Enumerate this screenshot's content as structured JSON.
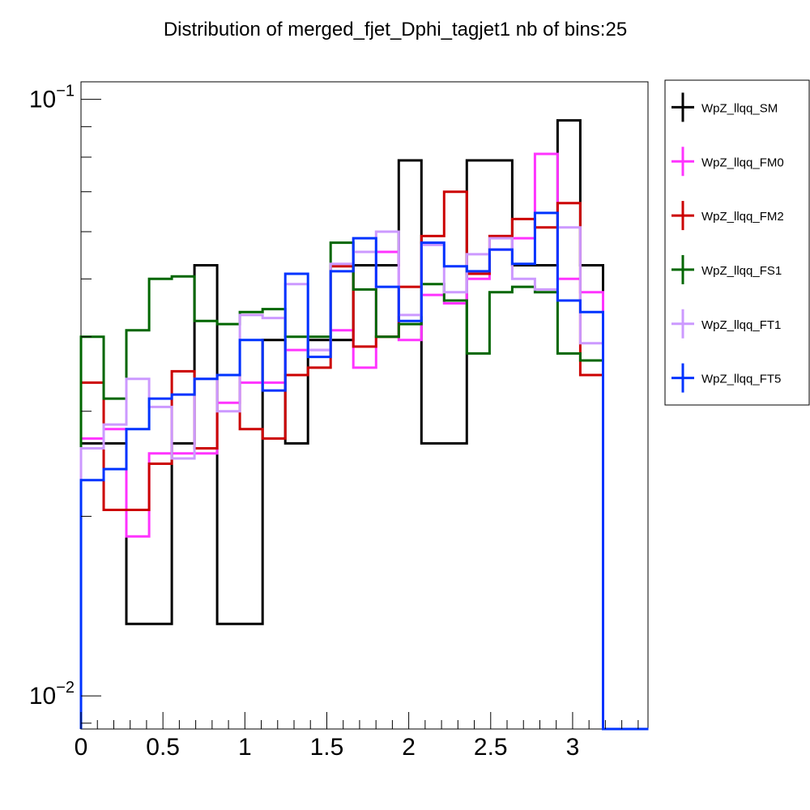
{
  "chart_data": {
    "type": "line",
    "title": "Distribution of merged_fjet_Dphi_tagjet1 nb of bins:25",
    "xlabel": "",
    "ylabel": "",
    "x_scale": "linear",
    "y_scale": "log",
    "xlim": [
      0,
      3.46
    ],
    "ylim": [
      0.0088,
      0.107
    ],
    "bin_edges": [
      0.0,
      0.1385,
      0.277,
      0.4155,
      0.554,
      0.6925,
      0.831,
      0.9695,
      1.108,
      1.2465,
      1.385,
      1.5235,
      1.662,
      1.8005,
      1.939,
      2.0775,
      2.216,
      2.3545,
      2.493,
      2.6315,
      2.77,
      2.9085,
      3.047,
      3.1855,
      3.324,
      3.4625
    ],
    "x_ticks": [
      {
        "value": 0,
        "label": "0"
      },
      {
        "value": 0.5,
        "label": "0.5"
      },
      {
        "value": 1,
        "label": "1"
      },
      {
        "value": 1.5,
        "label": "1.5"
      },
      {
        "value": 2,
        "label": "2"
      },
      {
        "value": 2.5,
        "label": "2.5"
      },
      {
        "value": 3,
        "label": "3"
      }
    ],
    "y_ticks": [
      {
        "value": 0.1,
        "base": "10",
        "exp": "−1"
      },
      {
        "value": 0.01,
        "base": "10",
        "exp": "−2"
      }
    ],
    "grid": false,
    "legend_position": "right",
    "series": [
      {
        "name": "WpZ_llqq_SM",
        "color": "#000000",
        "values": [
          0.0265,
          0.0265,
          0.0132,
          0.0132,
          0.0265,
          0.0527,
          0.0132,
          0.0132,
          0.0395,
          0.0265,
          0.0395,
          0.0395,
          0.0527,
          0.0527,
          0.079,
          0.0265,
          0.0265,
          0.079,
          0.079,
          0.0527,
          0.0527,
          0.0922,
          0.0527,
          0.0,
          0.0
        ]
      },
      {
        "name": "WpZ_llqq_FM0",
        "color": "#ff33ff",
        "values": [
          0.027,
          0.028,
          0.0185,
          0.0255,
          0.0255,
          0.0255,
          0.031,
          0.0335,
          0.0335,
          0.038,
          0.038,
          0.041,
          0.0355,
          0.0555,
          0.0395,
          0.047,
          0.0455,
          0.05,
          0.056,
          0.0585,
          0.081,
          0.05,
          0.0475,
          0.0,
          0.0
        ]
      },
      {
        "name": "WpZ_llqq_FM2",
        "color": "#cc0000",
        "values": [
          0.0335,
          0.0205,
          0.0205,
          0.0245,
          0.035,
          0.026,
          0.0345,
          0.028,
          0.027,
          0.0345,
          0.0355,
          0.0525,
          0.0385,
          0.04,
          0.0485,
          0.059,
          0.07,
          0.051,
          0.059,
          0.063,
          0.061,
          0.067,
          0.0345,
          0.0,
          0.0
        ]
      },
      {
        "name": "WpZ_llqq_FS1",
        "color": "#006600",
        "values": [
          0.04,
          0.0315,
          0.041,
          0.05,
          0.0505,
          0.0425,
          0.042,
          0.044,
          0.0445,
          0.04,
          0.04,
          0.0575,
          0.048,
          0.04,
          0.042,
          0.049,
          0.046,
          0.0375,
          0.0475,
          0.0485,
          0.0475,
          0.0375,
          0.0365,
          0.0,
          0.0
        ]
      },
      {
        "name": "WpZ_llqq_FT1",
        "color": "#cc99ff",
        "values": [
          0.026,
          0.0285,
          0.034,
          0.0305,
          0.025,
          0.034,
          0.03,
          0.0435,
          0.043,
          0.049,
          0.038,
          0.053,
          0.0555,
          0.06,
          0.0435,
          0.057,
          0.0475,
          0.055,
          0.0585,
          0.05,
          0.048,
          0.061,
          0.039,
          0.0,
          0.0
        ]
      },
      {
        "name": "WpZ_llqq_FT5",
        "color": "#0033ff",
        "values": [
          0.023,
          0.024,
          0.028,
          0.0315,
          0.032,
          0.034,
          0.0345,
          0.0395,
          0.0325,
          0.051,
          0.037,
          0.0515,
          0.0585,
          0.0485,
          0.0425,
          0.0575,
          0.0525,
          0.0515,
          0.056,
          0.053,
          0.0645,
          0.046,
          0.044,
          0.0,
          0.0
        ]
      }
    ]
  }
}
